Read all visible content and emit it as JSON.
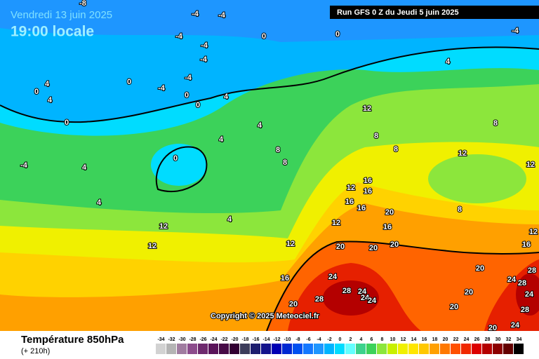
{
  "header": {
    "date": "Vendredi 13 juin 2025",
    "time": "19:00 locale",
    "run": "Run GFS 0 Z du Jeudi 5 juin 2025"
  },
  "map": {
    "copyright": "Copyright © 2025 Meteociel.fr",
    "contour_labels": [
      -8,
      -4,
      -4,
      0,
      0,
      -4,
      -4,
      -4,
      -4,
      4,
      0,
      -4,
      -4,
      0,
      0,
      4,
      4,
      0,
      4,
      0,
      4,
      12,
      8,
      8,
      8,
      4,
      8,
      8,
      12,
      12,
      0,
      -4,
      4,
      4,
      12,
      16,
      16,
      16,
      16,
      20,
      8,
      4,
      12,
      12,
      16,
      12,
      12,
      12,
      20,
      20,
      20,
      16,
      20,
      28,
      24,
      16,
      24,
      28,
      28,
      24,
      24,
      24,
      28,
      20,
      20,
      24,
      20,
      28,
      24,
      20
    ]
  },
  "footer": {
    "title": "Température 850hPa",
    "lead": "(+ 210h)"
  },
  "legend": {
    "ticks": [
      -34,
      -32,
      -30,
      -28,
      -26,
      -24,
      -22,
      -20,
      -18,
      -16,
      -14,
      -12,
      -10,
      -8,
      -6,
      -4,
      -2,
      0,
      2,
      4,
      6,
      8,
      10,
      12,
      14,
      16,
      18,
      20,
      22,
      24,
      26,
      28,
      30,
      32,
      34
    ],
    "colors": [
      "#d2d2d2",
      "#b4b4b4",
      "#a07ca0",
      "#8c4c8c",
      "#6e2a6e",
      "#5a145a",
      "#460a46",
      "#320032",
      "#3c3c5a",
      "#1e1e6e",
      "#14148c",
      "#0000b4",
      "#0028d2",
      "#0050f0",
      "#1478ff",
      "#1e96ff",
      "#00b4ff",
      "#00dcff",
      "#64ffff",
      "#3cd28c",
      "#3cd25a",
      "#8ce63c",
      "#c8f000",
      "#f0f000",
      "#ffe600",
      "#ffc800",
      "#ffa000",
      "#ff7800",
      "#ff5000",
      "#f02800",
      "#dc0000",
      "#b40000",
      "#8c0000",
      "#640000",
      "#000000"
    ]
  }
}
